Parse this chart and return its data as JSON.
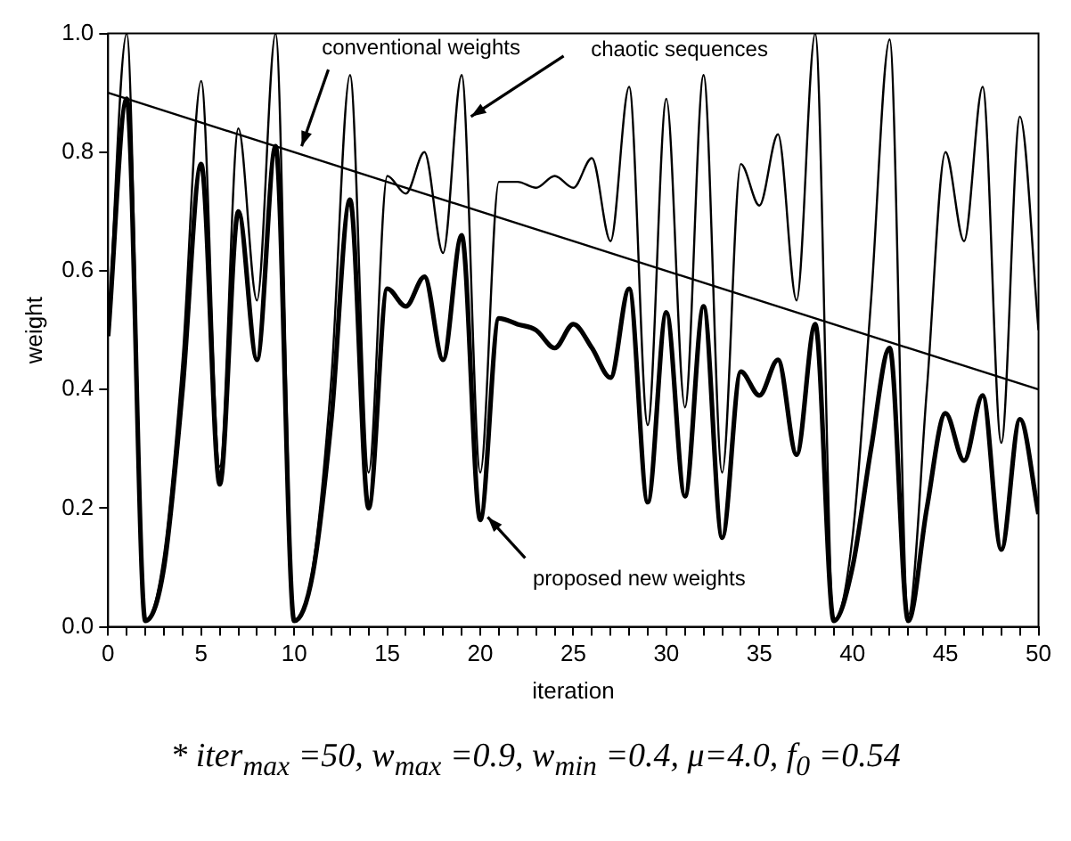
{
  "chart_data": {
    "type": "line",
    "xlabel": "iteration",
    "ylabel": "weight",
    "xlim": [
      0,
      50
    ],
    "ylim": [
      0,
      1
    ],
    "xticks": [
      0,
      {
        "value": 1,
        "label": null
      },
      {
        "value": 2,
        "label": null
      },
      {
        "value": 3,
        "label": null
      },
      {
        "value": 4,
        "label": null
      },
      5,
      {
        "value": 6,
        "label": null
      },
      {
        "value": 7,
        "label": null
      },
      {
        "value": 8,
        "label": null
      },
      {
        "value": 9,
        "label": null
      },
      10,
      {
        "value": 11,
        "label": null
      },
      {
        "value": 12,
        "label": null
      },
      {
        "value": 13,
        "label": null
      },
      {
        "value": 14,
        "label": null
      },
      15,
      {
        "value": 16,
        "label": null
      },
      {
        "value": 17,
        "label": null
      },
      {
        "value": 18,
        "label": null
      },
      {
        "value": 19,
        "label": null
      },
      20,
      {
        "value": 21,
        "label": null
      },
      {
        "value": 22,
        "label": null
      },
      {
        "value": 23,
        "label": null
      },
      {
        "value": 24,
        "label": null
      },
      25,
      {
        "value": 26,
        "label": null
      },
      {
        "value": 27,
        "label": null
      },
      {
        "value": 28,
        "label": null
      },
      {
        "value": 29,
        "label": null
      },
      30,
      {
        "value": 31,
        "label": null
      },
      {
        "value": 32,
        "label": null
      },
      {
        "value": 33,
        "label": null
      },
      {
        "value": 34,
        "label": null
      },
      35,
      {
        "value": 36,
        "label": null
      },
      {
        "value": 37,
        "label": null
      },
      {
        "value": 38,
        "label": null
      },
      {
        "value": 39,
        "label": null
      },
      40,
      {
        "value": 41,
        "label": null
      },
      {
        "value": 42,
        "label": null
      },
      {
        "value": 43,
        "label": null
      },
      {
        "value": 44,
        "label": null
      },
      45,
      {
        "value": 46,
        "label": null
      },
      {
        "value": 47,
        "label": null
      },
      {
        "value": 48,
        "label": null
      },
      {
        "value": 49,
        "label": null
      },
      50
    ],
    "yticks": [
      {
        "value": 0,
        "label": "0.0"
      },
      0.2,
      0.4,
      0.6,
      0.8,
      {
        "value": 1,
        "label": "1.0"
      }
    ],
    "grid": false,
    "legend": false,
    "marker": "none",
    "line_style": "solid",
    "x": [
      0,
      1,
      2,
      3,
      4,
      5,
      6,
      7,
      8,
      9,
      10,
      11,
      12,
      13,
      14,
      15,
      16,
      17,
      18,
      19,
      20,
      21,
      22,
      23,
      24,
      25,
      26,
      27,
      28,
      29,
      30,
      31,
      32,
      33,
      34,
      35,
      36,
      37,
      38,
      39,
      40,
      41,
      42,
      43,
      44,
      45,
      46,
      47,
      48,
      49,
      50
    ],
    "series": [
      {
        "color": "#000000",
        "values": [
          0.49,
          1.0,
          0.01,
          0.12,
          0.45,
          0.92,
          0.27,
          0.84,
          0.55,
          1.0,
          0.01,
          0.1,
          0.42,
          0.93,
          0.26,
          0.76,
          0.73,
          0.8,
          0.63,
          0.93,
          0.26,
          0.75,
          0.75,
          0.74,
          0.76,
          0.74,
          0.79,
          0.65,
          0.91,
          0.34,
          0.89,
          0.37,
          0.93,
          0.26,
          0.78,
          0.71,
          0.83,
          0.55,
          1.0,
          0.01,
          0.15,
          0.55,
          0.99,
          0.02,
          0.4,
          0.8,
          0.65,
          0.91,
          0.31,
          0.86,
          0.5
        ]
      },
      {
        "color": "#000000",
        "values": [
          0.49,
          0.89,
          0.01,
          0.1,
          0.4,
          0.78,
          0.24,
          0.7,
          0.45,
          0.81,
          0.01,
          0.09,
          0.35,
          0.72,
          0.2,
          0.57,
          0.54,
          0.59,
          0.45,
          0.66,
          0.18,
          0.52,
          0.51,
          0.5,
          0.47,
          0.51,
          0.47,
          0.42,
          0.57,
          0.21,
          0.53,
          0.22,
          0.54,
          0.15,
          0.43,
          0.39,
          0.45,
          0.29,
          0.51,
          0.01,
          0.1,
          0.3,
          0.47,
          0.01,
          0.2,
          0.36,
          0.28,
          0.39,
          0.13,
          0.35,
          0.19
        ]
      },
      {
        "color": "#000000",
        "x": [
          0,
          50
        ],
        "values": [
          0.9,
          0.4
        ]
      }
    ],
    "annotations": [
      {
        "text": "conventional weights",
        "x": 10.4,
        "y": 0.81
      },
      {
        "text": "chaotic sequences",
        "x": 19.5,
        "y": 0.86
      },
      {
        "text": "proposed new weights",
        "x": 20.4,
        "y": 0.185
      },
      "* iter$_{max}$ =50,  w$_{max}$ =0.9,  w$_{min}$ =0.4,  μ=4.0,  f$_{0}$ =0.54"
    ]
  }
}
